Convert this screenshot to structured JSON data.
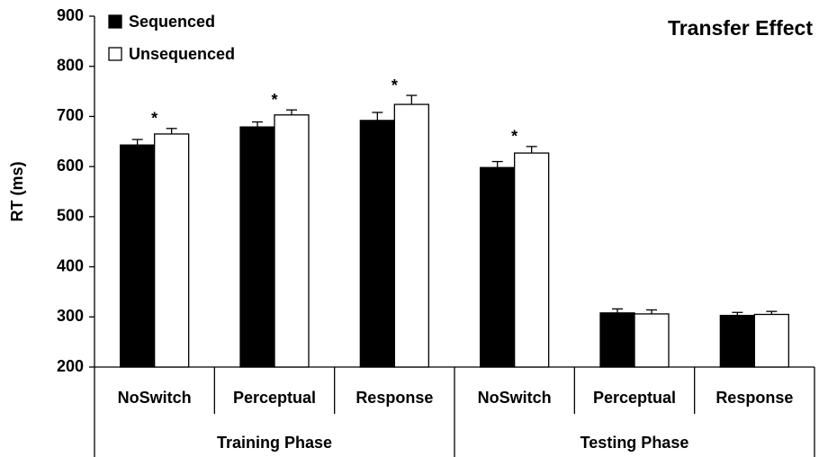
{
  "chart_data": {
    "type": "bar",
    "title": "Transfer Effect",
    "y_label": "RT (ms)",
    "categories": [
      "NoSwitch",
      "Perceptual",
      "Response",
      "NoSwitch",
      "Perceptual",
      "Response"
    ],
    "groups": [
      {
        "label": "Training Phase",
        "span": 3
      },
      {
        "label": "Testing Phase",
        "span": 3
      }
    ],
    "series": [
      {
        "name": "Sequenced",
        "color": "#000000",
        "values": [
          643,
          679,
          692,
          598,
          308,
          303
        ],
        "errors": [
          11,
          10,
          16,
          12,
          8,
          6
        ]
      },
      {
        "name": "Unsequenced",
        "color": "#ffffff",
        "values": [
          665,
          703,
          724,
          627,
          306,
          305
        ],
        "errors": [
          11,
          10,
          18,
          13,
          8,
          6
        ]
      }
    ],
    "significance": [
      "*",
      "*",
      "*",
      "*",
      null,
      null
    ],
    "ylim": [
      200,
      900
    ],
    "yticks": [
      200,
      300,
      400,
      500,
      600,
      700,
      800,
      900
    ],
    "legend": "upper left"
  }
}
